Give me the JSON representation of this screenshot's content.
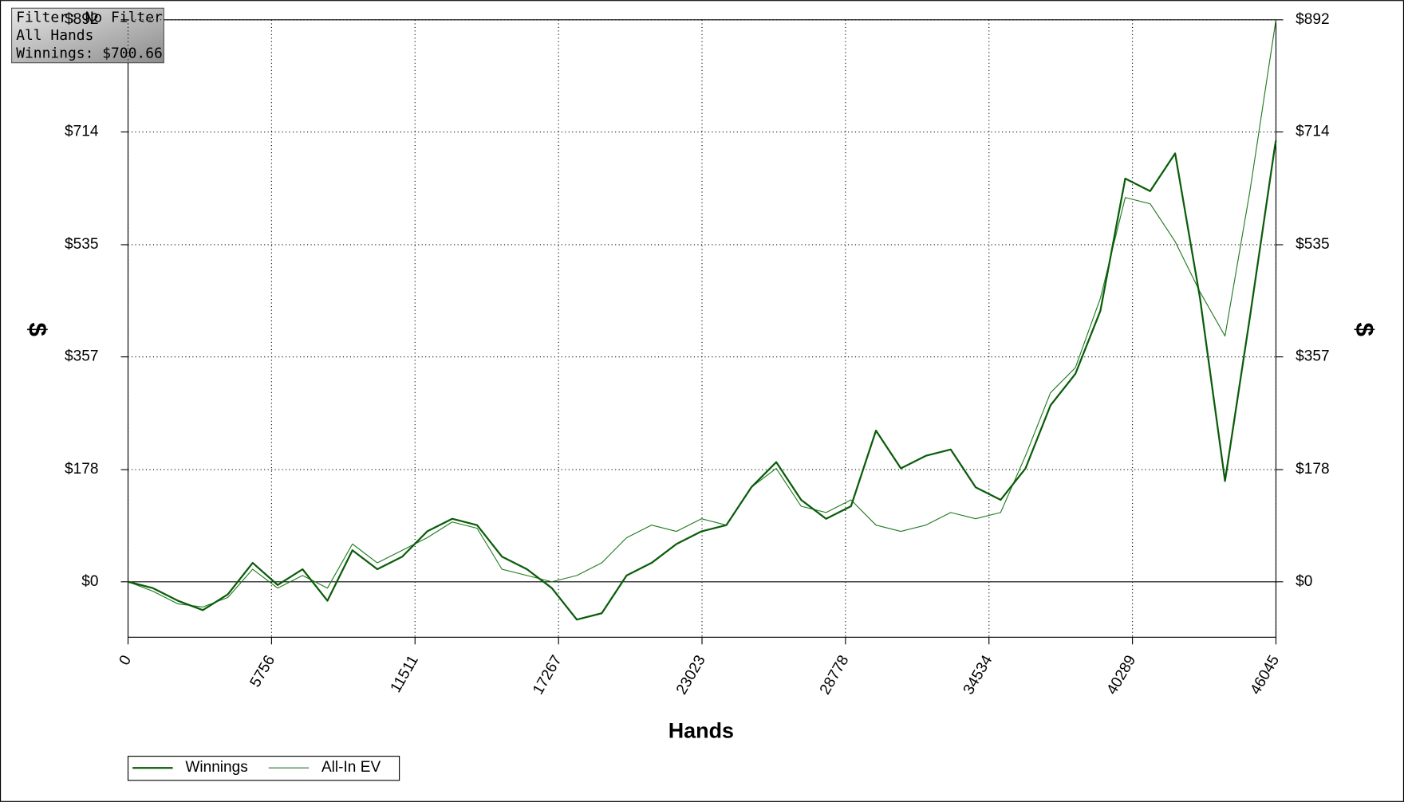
{
  "chart_data": {
    "type": "line",
    "info": [
      "Filter: No Filter",
      "All Hands",
      "Winnings: $700.66"
    ],
    "xlabel": "Hands",
    "ylabel": "$",
    "y2label": "$",
    "x": [
      0,
      1000,
      2000,
      3000,
      4000,
      5000,
      6000,
      7000,
      8000,
      9000,
      10000,
      11000,
      12000,
      13000,
      14000,
      15000,
      16000,
      17000,
      18000,
      19000,
      20000,
      21000,
      22000,
      23000,
      24000,
      25000,
      26000,
      27000,
      28000,
      29000,
      30000,
      31000,
      32000,
      33000,
      34000,
      35000,
      36000,
      37000,
      38000,
      39000,
      40000,
      41000,
      42000,
      43000,
      44000,
      45000,
      46000,
      46045
    ],
    "series": [
      {
        "name": "Winnings",
        "color": "#0a5c0a",
        "width": 2,
        "values": [
          0,
          -10,
          -30,
          -45,
          -20,
          30,
          -5,
          20,
          -30,
          50,
          20,
          40,
          80,
          100,
          90,
          40,
          20,
          -10,
          -60,
          -50,
          10,
          30,
          60,
          80,
          90,
          150,
          190,
          130,
          100,
          120,
          240,
          180,
          200,
          210,
          150,
          130,
          180,
          280,
          330,
          430,
          640,
          620,
          680,
          450,
          160,
          420,
          690,
          700.66
        ]
      },
      {
        "name": "All-In EV",
        "color": "#1f7a1f",
        "width": 1,
        "values": [
          0,
          -15,
          -35,
          -40,
          -25,
          20,
          -10,
          10,
          -10,
          60,
          30,
          50,
          70,
          95,
          85,
          20,
          10,
          0,
          10,
          30,
          70,
          90,
          80,
          100,
          90,
          150,
          180,
          120,
          110,
          130,
          90,
          80,
          90,
          110,
          100,
          110,
          200,
          300,
          340,
          450,
          610,
          600,
          540,
          460,
          390,
          620,
          880,
          892
        ]
      }
    ],
    "xlim": [
      0,
      46045
    ],
    "xticks": [
      0,
      5756,
      11511,
      17267,
      23023,
      28778,
      34534,
      40289,
      46045
    ],
    "ylim": [
      -88,
      892
    ],
    "yticks": [
      {
        "value": 0,
        "label": "$0"
      },
      {
        "value": 178,
        "label": "$178"
      },
      {
        "value": 357,
        "label": "$357"
      },
      {
        "value": 535,
        "label": "$535"
      },
      {
        "value": 714,
        "label": "$714"
      },
      {
        "value": 892,
        "label": "$892"
      }
    ],
    "grid": true
  }
}
